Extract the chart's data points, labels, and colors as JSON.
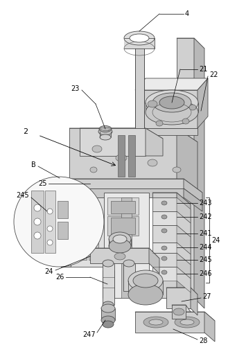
{
  "background_color": "#ffffff",
  "line_color": "#4a4a4a",
  "label_color": "#000000",
  "fig_width": 3.29,
  "fig_height": 5.08,
  "dpi": 100,
  "lw": 0.6,
  "lw_thin": 0.4,
  "gray_light": "#e8e8e8",
  "gray_mid": "#d0d0d0",
  "gray_dark": "#b8b8b8",
  "gray_darker": "#a0a0a0"
}
